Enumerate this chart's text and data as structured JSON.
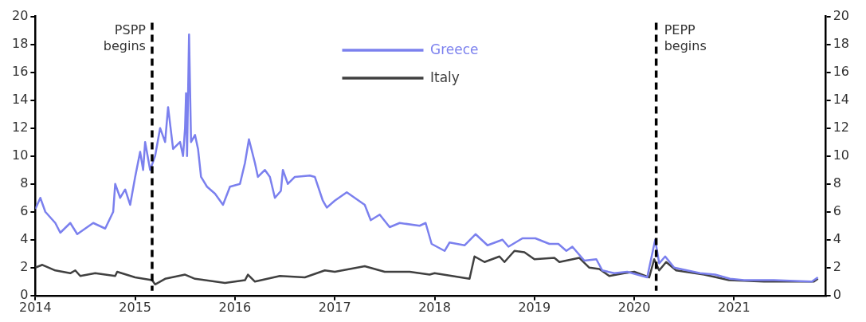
{
  "chart_data": {
    "type": "line",
    "series": [
      {
        "name": "Greece",
        "color": "#7b80ee",
        "x": [
          2014.0,
          2014.05,
          2014.1,
          2014.2,
          2014.25,
          2014.35,
          2014.42,
          2014.5,
          2014.58,
          2014.7,
          2014.78,
          2014.8,
          2014.85,
          2014.9,
          2014.95,
          2015.0,
          2015.05,
          2015.08,
          2015.1,
          2015.15,
          2015.2,
          2015.25,
          2015.3,
          2015.33,
          2015.38,
          2015.45,
          2015.48,
          2015.5,
          2015.51,
          2015.52,
          2015.54,
          2015.56,
          2015.6,
          2015.63,
          2015.66,
          2015.72,
          2015.8,
          2015.88,
          2015.95,
          2016.05,
          2016.1,
          2016.14,
          2016.2,
          2016.23,
          2016.3,
          2016.35,
          2016.4,
          2016.46,
          2016.48,
          2016.53,
          2016.6,
          2016.75,
          2016.8,
          2016.88,
          2016.92,
          2017.0,
          2017.12,
          2017.2,
          2017.3,
          2017.36,
          2017.45,
          2017.55,
          2017.65,
          2017.85,
          2017.91,
          2017.97,
          2018.1,
          2018.15,
          2018.3,
          2018.41,
          2018.53,
          2018.68,
          2018.74,
          2018.88,
          2019.01,
          2019.15,
          2019.24,
          2019.32,
          2019.38,
          2019.5,
          2019.62,
          2019.68,
          2019.8,
          2019.93,
          2020.13,
          2020.21,
          2020.25,
          2020.31,
          2020.4,
          2020.66,
          2020.81,
          2020.96,
          2021.1,
          2021.4,
          2021.78,
          2021.84
        ],
        "values": [
          6.2,
          7.0,
          6.0,
          5.2,
          4.5,
          5.2,
          4.4,
          4.8,
          5.2,
          4.8,
          6.0,
          8.0,
          7.0,
          7.6,
          6.5,
          8.5,
          10.3,
          9.0,
          11.0,
          9.0,
          10.0,
          12.0,
          11.0,
          13.5,
          10.5,
          11.0,
          10.0,
          12.0,
          14.5,
          10.0,
          18.7,
          11.0,
          11.5,
          10.5,
          8.5,
          7.8,
          7.3,
          6.5,
          7.8,
          8.0,
          9.5,
          11.2,
          9.5,
          8.5,
          9.0,
          8.5,
          7.0,
          7.5,
          9.0,
          8.0,
          8.5,
          8.6,
          8.5,
          6.8,
          6.3,
          6.8,
          7.4,
          7.0,
          6.5,
          5.4,
          5.8,
          4.9,
          5.2,
          5.0,
          5.2,
          3.7,
          3.2,
          3.8,
          3.6,
          4.4,
          3.6,
          4.0,
          3.5,
          4.1,
          4.1,
          3.7,
          3.7,
          3.2,
          3.5,
          2.5,
          2.6,
          1.8,
          1.6,
          1.7,
          1.3,
          4.0,
          2.3,
          2.8,
          2.0,
          1.6,
          1.5,
          1.2,
          1.1,
          1.1,
          1.0,
          1.3
        ]
      },
      {
        "name": "Italy",
        "color": "#404040",
        "x": [
          2014.0,
          2014.07,
          2014.2,
          2014.35,
          2014.4,
          2014.45,
          2014.6,
          2014.8,
          2014.82,
          2015.0,
          2015.17,
          2015.2,
          2015.3,
          2015.5,
          2015.6,
          2015.9,
          2016.1,
          2016.13,
          2016.2,
          2016.45,
          2016.7,
          2016.9,
          2017.0,
          2017.3,
          2017.5,
          2017.75,
          2017.95,
          2018.0,
          2018.35,
          2018.4,
          2018.5,
          2018.65,
          2018.7,
          2018.8,
          2018.9,
          2019.0,
          2019.2,
          2019.25,
          2019.45,
          2019.55,
          2019.65,
          2019.75,
          2019.9,
          2020.0,
          2020.15,
          2020.2,
          2020.25,
          2020.32,
          2020.42,
          2020.7,
          2020.95,
          2021.3,
          2021.8,
          2021.84
        ],
        "values": [
          2.0,
          2.2,
          1.8,
          1.6,
          1.8,
          1.4,
          1.6,
          1.4,
          1.7,
          1.3,
          1.1,
          0.8,
          1.2,
          1.5,
          1.2,
          0.9,
          1.1,
          1.5,
          1.0,
          1.4,
          1.3,
          1.8,
          1.7,
          2.1,
          1.7,
          1.7,
          1.5,
          1.6,
          1.2,
          2.8,
          2.4,
          2.8,
          2.4,
          3.2,
          3.1,
          2.6,
          2.7,
          2.4,
          2.7,
          2.0,
          1.9,
          1.4,
          1.6,
          1.7,
          1.3,
          2.6,
          1.8,
          2.4,
          1.8,
          1.5,
          1.1,
          1.0,
          1.0,
          1.2
        ]
      }
    ],
    "xlim": [
      2014,
      2021.92
    ],
    "xticks": [
      2014,
      2015,
      2016,
      2017,
      2018,
      2019,
      2020,
      2021
    ],
    "ylim": [
      0,
      20
    ],
    "yticks": [
      0,
      2,
      4,
      6,
      8,
      10,
      12,
      14,
      16,
      18,
      20
    ],
    "y2lim": [
      0,
      20
    ],
    "y2ticks": [
      0,
      2,
      4,
      6,
      8,
      10,
      12,
      14,
      16,
      18,
      20
    ],
    "ref_lines": [
      {
        "axis": "x",
        "value": 2015.17,
        "label": "PSPP begins",
        "color": "#000000",
        "line_style": "dashed"
      },
      {
        "axis": "x",
        "value": 2020.22,
        "label": "PEPP begins",
        "color": "#000000",
        "line_style": "dashed"
      }
    ],
    "grid": false,
    "legend": "top"
  }
}
